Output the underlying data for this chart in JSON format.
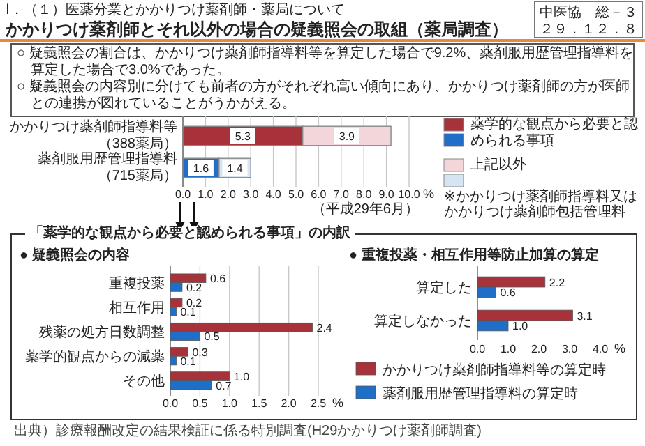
{
  "chart_data": [
    {
      "type": "bar",
      "orientation": "horizontal",
      "stacked": true,
      "subtitle": "Ⅰ．（１）医薬分業とかかりつけ薬剤師・薬局について",
      "title": "かかりつけ薬剤師とそれ以外の場合の疑義照会の取組（薬局調査）",
      "categories": [
        "かかりつけ薬剤師指導料等（388薬局）",
        "薬剤服用歴管理指導料（715薬局）"
      ],
      "series": [
        {
          "name": "薬学的な観点から必要と認められる事項",
          "colors": [
            "#a8323a",
            "#1f6ec8"
          ],
          "values": [
            5.3,
            1.6
          ],
          "value_labels": [
            "5.3",
            "1.6"
          ]
        },
        {
          "name": "上記以外",
          "colors": [
            "#f3d6d9",
            "#d7e4f1"
          ],
          "values": [
            3.9,
            1.4
          ],
          "value_labels": [
            "3.9",
            "1.4"
          ]
        }
      ],
      "xlim": [
        0,
        10
      ],
      "xticks": [
        {
          "value": 0,
          "label": "0.0"
        },
        {
          "value": 1,
          "label": "1.0"
        },
        {
          "value": 2,
          "label": "2.0"
        },
        {
          "value": 3,
          "label": "3.0"
        },
        {
          "value": 4,
          "label": "4.0"
        },
        {
          "value": 5,
          "label": "5.0"
        },
        {
          "value": 6,
          "label": "6.0"
        },
        {
          "value": 7,
          "label": "7.0"
        },
        {
          "value": 8,
          "label": "8.0"
        },
        {
          "value": 9,
          "label": "9.0"
        },
        {
          "value": 10,
          "label": "10.0"
        }
      ],
      "xlabel": "%",
      "grid": "x",
      "legend": "right",
      "annotations": [
        "中医協　総－３",
        "２９．１２．８",
        "○ 疑義照会の割合は、かかりつけ薬剤師指導料等を算定した場合で9.2%、薬剤服用歴管理指導料を算定した場合で3.0%であった。",
        "○ 疑義照会の内容別に分けても前者の方がそれぞれ高い傾向にあり、かかりつけ薬剤師の方が医師との連携が図れていることがうかがえる。",
        "（平成29年6月）",
        "※かかりつけ薬剤師指導料又はかかりつけ薬剤師包括管理料"
      ]
    },
    {
      "type": "bar",
      "orientation": "horizontal",
      "title": "● 疑義照会の内容",
      "categories": [
        "重複投薬",
        "相互作用",
        "残薬の処方日数調整",
        "薬学的観点からの減薬",
        "その他"
      ],
      "series": [
        {
          "color": "#a8323a",
          "values": [
            0.6,
            0.2,
            2.4,
            0.3,
            1.0
          ],
          "value_labels": [
            "0.6",
            "0.2",
            "2.4",
            "0.3",
            "1.0"
          ]
        },
        {
          "color": "#1f6ec8",
          "values": [
            0.2,
            0.1,
            0.5,
            0.1,
            0.7
          ],
          "value_labels": [
            "0.2",
            "0.1",
            "0.5",
            "0.1",
            "0.7"
          ]
        }
      ],
      "xlim": [
        0,
        2.5
      ],
      "xticks": [
        {
          "value": 0,
          "label": "0.0"
        },
        {
          "value": 0.5,
          "label": "0.5"
        },
        {
          "value": 1,
          "label": "1.0"
        },
        {
          "value": 1.5,
          "label": "1.5"
        },
        {
          "value": 2,
          "label": "2.0"
        },
        {
          "value": 2.5,
          "label": "2.5"
        }
      ],
      "xlabel": "%",
      "grid": "x",
      "annotations": [
        "「薬学的な観点から必要と認められる事項」の内訳",
        "出典）診療報酬改定の結果検証に係る特別調査(H29かかりつけ薬剤師調査)"
      ]
    },
    {
      "type": "bar",
      "orientation": "horizontal",
      "title": "● 重複投薬・相互作用等防止加算の算定",
      "categories": [
        "算定した",
        "算定しなかった"
      ],
      "series": [
        {
          "name": "かかりつけ薬剤師指導料等の算定時",
          "color": "#a8323a",
          "values": [
            2.2,
            3.1
          ],
          "value_labels": [
            "2.2",
            "3.1"
          ]
        },
        {
          "name": "薬剤服用歴管理指導料の算定時",
          "color": "#1f6ec8",
          "values": [
            0.6,
            1.0
          ],
          "value_labels": [
            "0.6",
            "1.0"
          ]
        }
      ],
      "xlim": [
        0,
        4
      ],
      "xticks": [
        {
          "value": 0,
          "label": "0.0"
        },
        {
          "value": 1,
          "label": "1.0"
        },
        {
          "value": 2,
          "label": "2.0"
        },
        {
          "value": 3,
          "label": "3.0"
        },
        {
          "value": 4,
          "label": "4.0"
        }
      ],
      "xlabel": "%",
      "legend": "bottom"
    }
  ]
}
